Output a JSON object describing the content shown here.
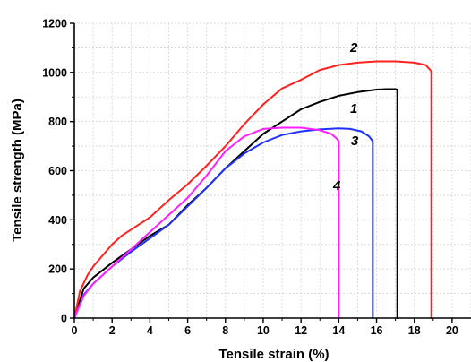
{
  "chart_data": {
    "type": "line",
    "xlabel": "Tensile strain (%)",
    "ylabel": "Tensile strength (MPa)",
    "xlim": [
      0,
      21
    ],
    "ylim": [
      0,
      1200
    ],
    "x_ticks": [
      0,
      2,
      4,
      6,
      8,
      10,
      12,
      14,
      16,
      18,
      20
    ],
    "y_ticks": [
      0,
      200,
      400,
      600,
      800,
      1000,
      1200
    ],
    "grid": true,
    "series": [
      {
        "name": "1",
        "color": "#000000",
        "x": [
          0,
          0.5,
          1,
          2,
          3,
          4,
          5,
          6,
          7,
          8,
          9,
          10,
          11,
          12,
          13,
          14,
          15,
          16,
          16.5,
          17,
          17.1,
          17.1
        ],
        "y": [
          0,
          120,
          165,
          225,
          280,
          335,
          380,
          460,
          530,
          610,
          680,
          750,
          800,
          850,
          880,
          905,
          920,
          930,
          932,
          932,
          930,
          0
        ]
      },
      {
        "name": "2",
        "color": "#ff2020",
        "x": [
          0,
          0.3,
          0.7,
          1,
          1.5,
          2,
          2.5,
          3,
          4,
          5,
          6,
          7,
          8,
          9,
          10,
          11,
          12,
          13,
          14,
          15,
          16,
          17,
          18,
          18.6,
          18.9,
          18.9
        ],
        "y": [
          0,
          110,
          175,
          210,
          255,
          300,
          335,
          360,
          410,
          480,
          545,
          620,
          700,
          790,
          870,
          935,
          970,
          1010,
          1030,
          1040,
          1045,
          1045,
          1040,
          1030,
          1005,
          0
        ]
      },
      {
        "name": "3",
        "color": "#2030ff",
        "x": [
          0,
          0.5,
          1,
          2,
          3,
          4,
          5,
          6,
          7,
          8,
          9,
          10,
          11,
          12,
          13,
          14,
          14.6,
          15.2,
          15.6,
          15.8,
          15.8
        ],
        "y": [
          0,
          95,
          140,
          210,
          270,
          325,
          380,
          455,
          530,
          610,
          670,
          715,
          745,
          760,
          768,
          772,
          770,
          760,
          740,
          720,
          0
        ]
      },
      {
        "name": "4",
        "color": "#ff20ff",
        "x": [
          0,
          0.5,
          1,
          2,
          3,
          4,
          5,
          6,
          7,
          8,
          9,
          10,
          11,
          12,
          13,
          13.6,
          13.9,
          14,
          14
        ],
        "y": [
          0,
          90,
          140,
          210,
          280,
          350,
          420,
          490,
          580,
          680,
          740,
          770,
          775,
          775,
          765,
          750,
          730,
          720,
          0
        ]
      }
    ]
  }
}
